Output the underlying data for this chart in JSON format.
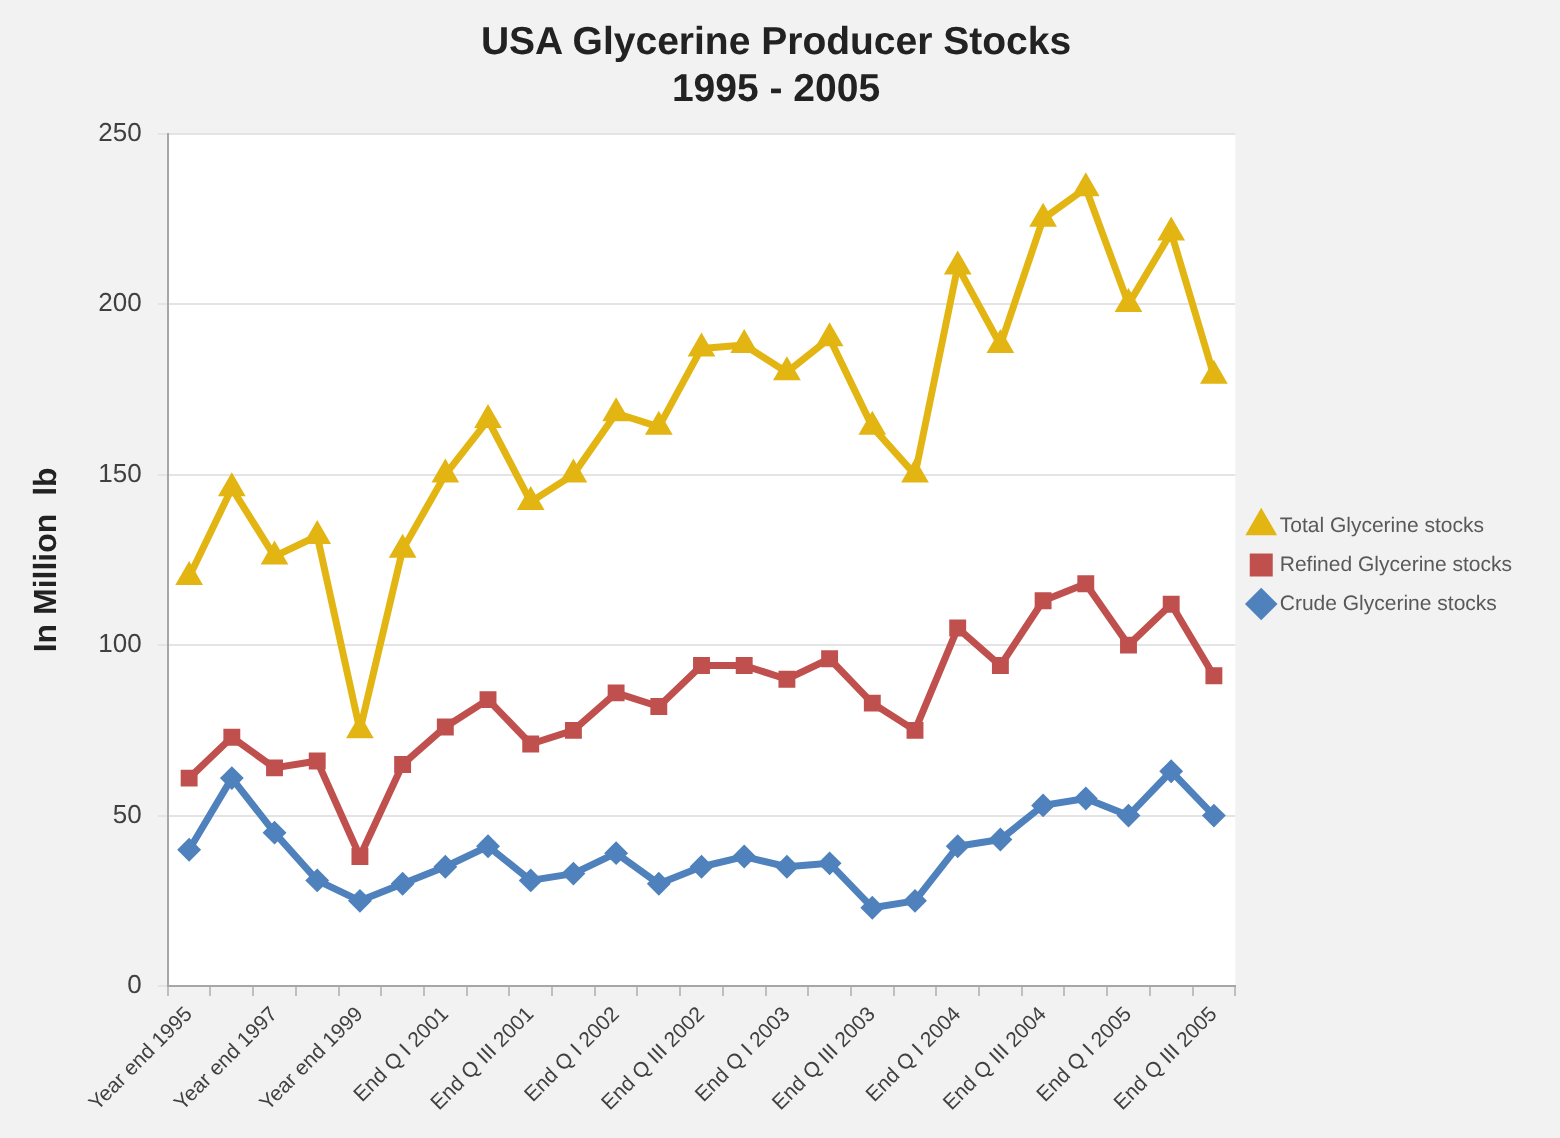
{
  "chart_data": {
    "type": "line",
    "title": "USA Glycerine Producer Stocks\n1995 - 2005",
    "ylabel": "In Million  lb",
    "categories": [
      "Year end 1995",
      null,
      "Year end 1997",
      null,
      "Year end 1999",
      null,
      "End Q I 2001",
      null,
      "End Q III 2001",
      null,
      "End Q I 2002",
      null,
      "End Q III 2002",
      null,
      "End Q I 2003",
      null,
      "End Q III 2003",
      null,
      "End Q I 2004",
      null,
      "End Q III 2004",
      null,
      "End Q I 2005",
      null,
      "End Q III 2005"
    ],
    "series": [
      {
        "name": "Total Glycerine stocks",
        "color": "#e2b512",
        "marker": "triangle",
        "values": [
          120,
          146,
          126,
          132,
          75,
          128,
          150,
          166,
          142,
          150,
          168,
          164,
          187,
          188,
          180,
          190,
          164,
          150,
          211,
          188,
          225,
          234,
          200,
          221,
          179
        ]
      },
      {
        "name": "Refined Glycerine stocks",
        "color": "#c0504d",
        "marker": "square",
        "values": [
          61,
          73,
          64,
          66,
          38,
          65,
          76,
          84,
          71,
          75,
          86,
          82,
          94,
          94,
          90,
          96,
          83,
          75,
          105,
          94,
          113,
          118,
          100,
          112,
          91
        ]
      },
      {
        "name": "Crude Glycerine stocks",
        "color": "#4f81bd",
        "marker": "diamond",
        "values": [
          40,
          61,
          45,
          31,
          25,
          30,
          35,
          41,
          31,
          33,
          39,
          30,
          35,
          38,
          35,
          36,
          23,
          25,
          41,
          43,
          53,
          55,
          50,
          63,
          50
        ]
      }
    ],
    "ylim": [
      0,
      250
    ],
    "yticks": [
      0,
      50,
      100,
      150,
      200,
      250
    ],
    "grid": "y",
    "legend": "right"
  }
}
